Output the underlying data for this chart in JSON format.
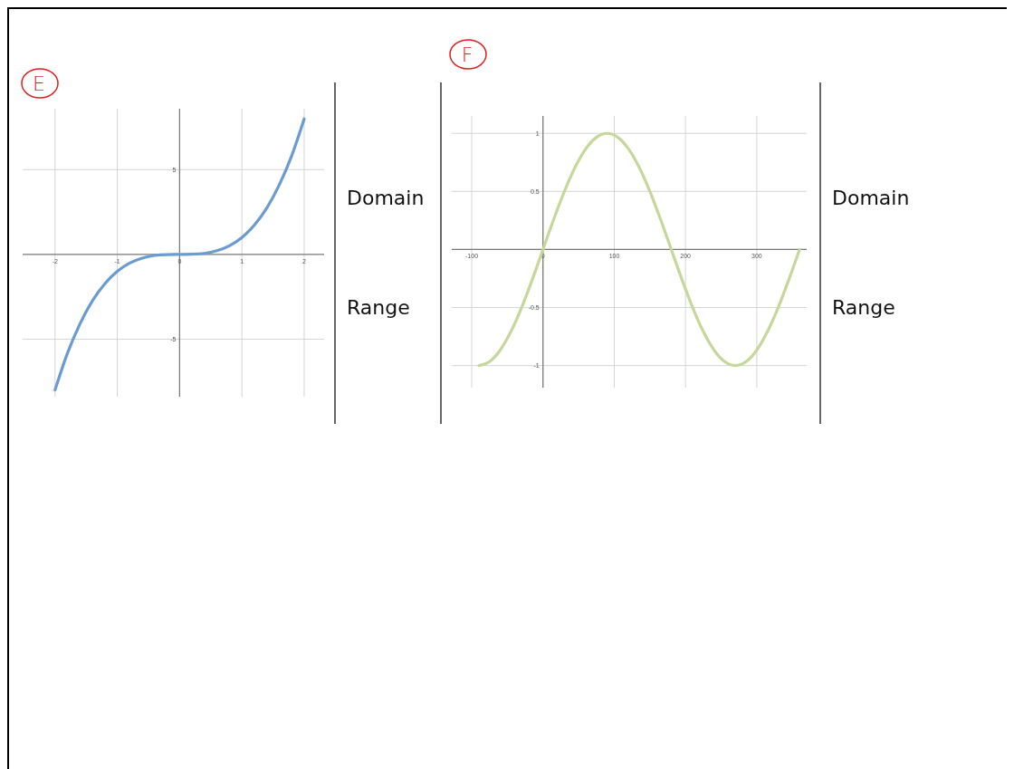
{
  "chart_data": [
    {
      "type": "line",
      "title": "E",
      "annotations": [
        "Domain",
        "Range"
      ],
      "xlim": [
        -2.52,
        2.32
      ],
      "ylim": [
        -8.4,
        8.6
      ],
      "xticks": [
        -2,
        -1,
        0,
        1,
        2
      ],
      "yticks": [
        -5,
        5
      ],
      "grid": true,
      "marker": "none",
      "line_style": "solid",
      "series": [
        {
          "color": "#6a9bd1",
          "x": [
            -2,
            -1.8,
            -1.6,
            -1.4,
            -1.2,
            -1,
            -0.8,
            -0.6,
            -0.4,
            -0.2,
            0,
            0.2,
            0.4,
            0.6,
            0.8,
            1,
            1.2,
            1.4,
            1.6,
            1.8,
            2
          ],
          "values": [
            -8,
            -5.83,
            -4.1,
            -2.74,
            -1.73,
            -1,
            -0.51,
            -0.22,
            -0.06,
            -0.01,
            0,
            0.01,
            0.06,
            0.22,
            0.51,
            1,
            1.73,
            2.74,
            4.1,
            5.83,
            8
          ]
        }
      ]
    },
    {
      "type": "line",
      "title": "F",
      "annotations": [
        "Domain",
        "Range"
      ],
      "xlim": [
        -128,
        370
      ],
      "ylim": [
        -1.19,
        1.15
      ],
      "xticks": [
        -100,
        0,
        100,
        200,
        300
      ],
      "yticks": [
        -1,
        -0.5,
        0.5,
        1
      ],
      "grid": true,
      "marker": "none",
      "line_style": "solid",
      "series": [
        {
          "color": "#c3d89a",
          "x": [
            -90,
            -75,
            -60,
            -45,
            -30,
            -15,
            0,
            15,
            30,
            45,
            60,
            75,
            90,
            105,
            120,
            135,
            150,
            165,
            180,
            195,
            210,
            225,
            240,
            255,
            270,
            285,
            300,
            315,
            330,
            345,
            360
          ],
          "values": [
            -1,
            -0.966,
            -0.866,
            -0.707,
            -0.5,
            -0.259,
            0,
            0.259,
            0.5,
            0.707,
            0.866,
            0.966,
            1,
            0.966,
            0.866,
            0.707,
            0.5,
            0.259,
            0,
            -0.259,
            -0.5,
            -0.707,
            -0.866,
            -0.966,
            -1,
            -0.966,
            -0.866,
            -0.707,
            -0.5,
            -0.259,
            0
          ]
        }
      ]
    }
  ]
}
